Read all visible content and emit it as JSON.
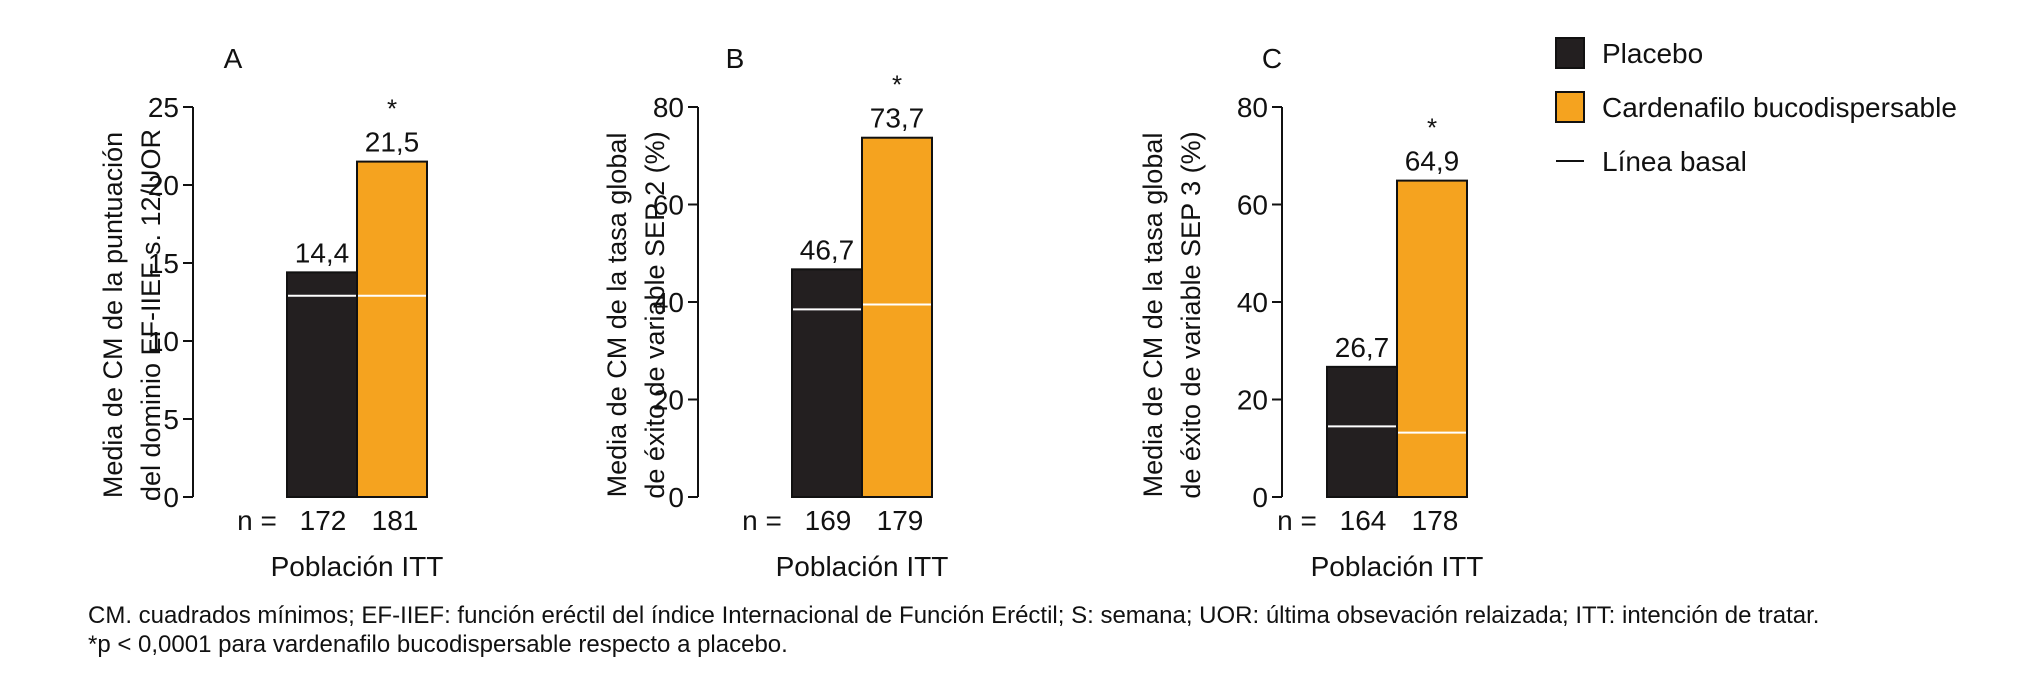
{
  "colors": {
    "placebo": "#231f20",
    "cardenafilo": "#f5a31f",
    "baseline": "#ffffff",
    "axis": "#111111"
  },
  "legend": [
    {
      "label": "Placebo",
      "swatch": "placebo"
    },
    {
      "label": "Cardenafilo bucodispersable",
      "swatch": "cardenafilo"
    },
    {
      "label": "Línea basal",
      "swatch": "line"
    }
  ],
  "chart_data": [
    {
      "type": "bar",
      "panel": "A",
      "ylabel_lines": [
        "Media de CM de la puntuación",
        "del dominio EF-IIEF s. 12/UOR"
      ],
      "ylim": [
        0,
        25
      ],
      "yticks": [
        0,
        5,
        10,
        15,
        20,
        25
      ],
      "xlabel": "Población ITT",
      "n_prefix": "n =",
      "series": [
        {
          "name": "Placebo",
          "value": 14.4,
          "value_label": "14,4",
          "baseline": 12.9,
          "n": "172",
          "significance": ""
        },
        {
          "name": "Cardenafilo bucodispersable",
          "value": 21.5,
          "value_label": "21,5",
          "baseline": 12.9,
          "n": "181",
          "significance": "*"
        }
      ]
    },
    {
      "type": "bar",
      "panel": "B",
      "ylabel_lines": [
        "Media de CM de la tasa global",
        "de éxito de variable SEP 2 (%)"
      ],
      "ylim": [
        0,
        80
      ],
      "yticks": [
        0,
        20,
        40,
        60,
        80
      ],
      "xlabel": "Población ITT",
      "n_prefix": "n =",
      "series": [
        {
          "name": "Placebo",
          "value": 46.7,
          "value_label": "46,7",
          "baseline": 38.5,
          "n": "169",
          "significance": ""
        },
        {
          "name": "Cardenafilo bucodispersable",
          "value": 73.7,
          "value_label": "73,7",
          "baseline": 39.5,
          "n": "179",
          "significance": "*"
        }
      ]
    },
    {
      "type": "bar",
      "panel": "C",
      "ylabel_lines": [
        "Media de CM de la tasa global",
        "de éxito de variable SEP 3 (%)"
      ],
      "ylim": [
        0,
        80
      ],
      "yticks": [
        0,
        20,
        40,
        60,
        80
      ],
      "xlabel": "Población ITT",
      "n_prefix": "n =",
      "series": [
        {
          "name": "Placebo",
          "value": 26.7,
          "value_label": "26,7",
          "baseline": 14.5,
          "n": "164",
          "significance": ""
        },
        {
          "name": "Cardenafilo bucodispersable",
          "value": 64.9,
          "value_label": "64,9",
          "baseline": 13.2,
          "n": "178",
          "significance": "*"
        }
      ]
    }
  ],
  "footnotes": [
    "CM. cuadrados mínimos; EF-IIEF: función eréctil del índice Internacional de Función Eréctil; S: semana; UOR: última obsevación relaizada; ITT: intención de tratar.",
    "*p < 0,0001 para vardenafilo bucodispersable respecto a placebo."
  ]
}
